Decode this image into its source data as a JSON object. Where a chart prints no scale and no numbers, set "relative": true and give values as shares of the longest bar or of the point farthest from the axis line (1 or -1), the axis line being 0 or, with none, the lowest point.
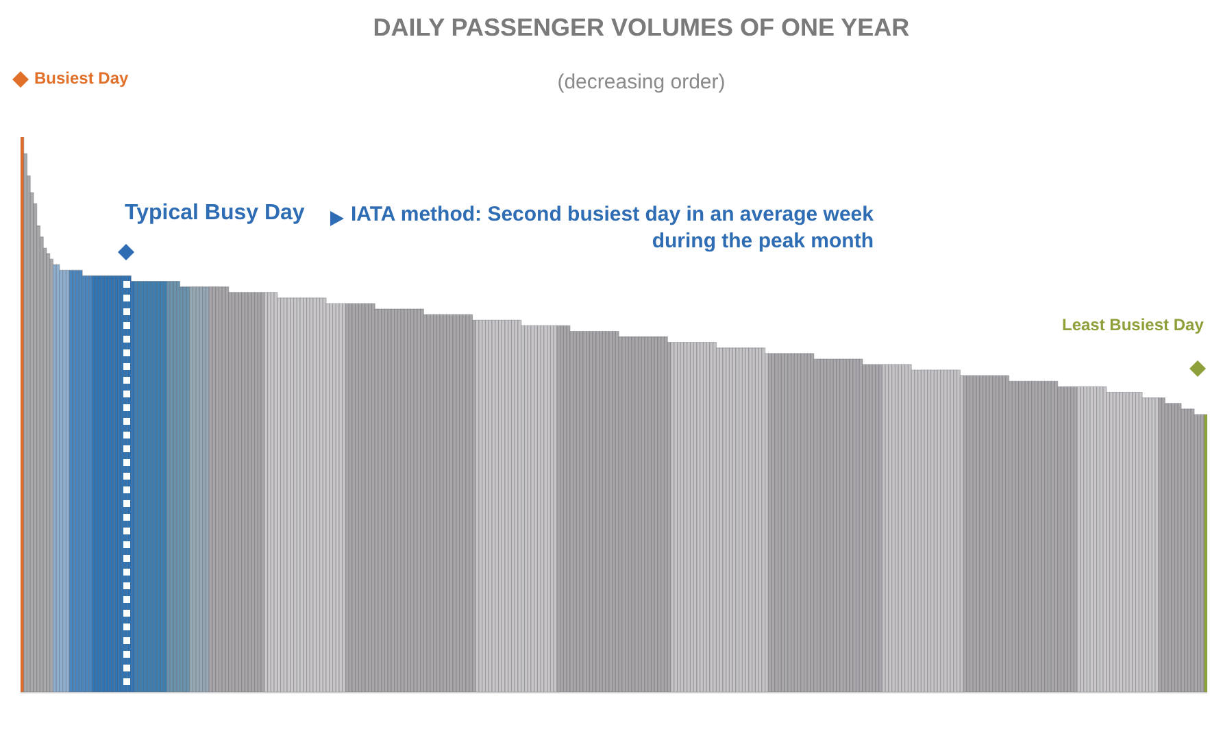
{
  "chart_data": {
    "type": "bar",
    "title": "DAILY PASSENGER VOLUMES OF ONE YEAR",
    "subtitle": "(decreasing order)",
    "relative": true,
    "tick_labels": false,
    "categories": [
      null,
      null,
      null,
      null,
      null,
      null,
      null,
      null,
      null,
      null,
      null,
      null,
      null,
      null,
      null,
      null,
      null,
      null,
      null,
      null,
      null,
      null,
      null,
      null,
      null,
      null,
      null,
      null,
      null,
      null,
      null,
      null,
      null,
      null,
      null,
      null,
      null,
      null,
      null,
      null,
      null,
      null,
      null,
      null,
      null,
      null,
      null,
      null,
      null,
      null,
      null,
      null,
      null,
      null,
      null,
      null,
      null,
      null,
      null,
      null,
      null,
      null,
      null,
      null,
      null,
      null,
      null,
      null,
      null,
      null,
      null,
      null,
      null,
      null,
      null,
      null,
      null,
      null,
      null,
      null,
      null,
      null,
      null,
      null,
      null,
      null,
      null,
      null,
      null,
      null,
      null,
      null,
      null,
      null,
      null,
      null,
      null,
      null,
      null,
      null,
      null,
      null,
      null,
      null,
      null,
      null,
      null,
      null,
      null,
      null,
      null,
      null,
      null,
      null,
      null,
      null,
      null,
      null,
      null,
      null,
      null,
      null,
      null,
      null,
      null,
      null,
      null,
      null,
      null,
      null,
      null,
      null,
      null,
      null,
      null,
      null,
      null,
      null,
      null,
      null,
      null,
      null,
      null,
      null,
      null,
      null,
      null,
      null,
      null,
      null,
      null,
      null,
      null,
      null,
      null,
      null,
      null,
      null,
      null,
      null,
      null,
      null,
      null,
      null,
      null,
      null,
      null,
      null,
      null,
      null,
      null,
      null,
      null,
      null,
      null,
      null,
      null,
      null,
      null,
      null,
      null,
      null,
      null,
      null,
      null,
      null,
      null,
      null,
      null,
      null,
      null,
      null,
      null,
      null,
      null,
      null,
      null,
      null,
      null,
      null,
      null,
      null,
      null,
      null,
      null,
      null,
      null,
      null,
      null,
      null,
      null,
      null,
      null,
      null,
      null,
      null,
      null,
      null,
      null,
      null,
      null,
      null,
      null,
      null,
      null,
      null,
      null,
      null,
      null,
      null,
      null,
      null,
      null,
      null,
      null,
      null,
      null,
      null,
      null,
      null,
      null,
      null,
      null,
      null,
      null,
      null,
      null,
      null,
      null,
      null,
      null,
      null,
      null,
      null,
      null,
      null,
      null,
      null,
      null,
      null,
      null,
      null,
      null,
      null,
      null,
      null,
      null,
      null,
      null,
      null,
      null,
      null,
      null,
      null,
      null,
      null,
      null,
      null,
      null,
      null,
      null,
      null,
      null,
      null,
      null,
      null,
      null,
      null,
      null,
      null,
      null,
      null,
      null,
      null,
      null,
      null,
      null,
      null,
      null,
      null,
      null,
      null,
      null,
      null,
      null,
      null,
      null,
      null,
      null,
      null,
      null,
      null,
      null,
      null,
      null,
      null,
      null,
      null,
      null,
      null,
      null,
      null,
      null,
      null,
      null,
      null,
      null,
      null,
      null,
      null,
      null,
      null,
      null,
      null,
      null,
      null,
      null,
      null,
      null,
      null,
      null,
      null,
      null,
      null,
      null,
      null,
      null,
      null,
      null,
      null,
      null,
      null,
      null,
      null,
      null,
      null,
      null,
      null,
      null,
      null,
      null,
      null,
      null,
      null,
      null
    ],
    "values": [
      1,
      0.97,
      0.93,
      0.9,
      0.88,
      0.84,
      0.82,
      0.8,
      0.79,
      0.78,
      0.77,
      0.77,
      0.76,
      0.76,
      0.76,
      0.76,
      0.76,
      0.76,
      0.76,
      0.75,
      0.75,
      0.75,
      0.75,
      0.75,
      0.75,
      0.75,
      0.75,
      0.75,
      0.75,
      0.75,
      0.75,
      0.75,
      0.75,
      0.75,
      0.74,
      0.74,
      0.74,
      0.74,
      0.74,
      0.74,
      0.74,
      0.74,
      0.74,
      0.74,
      0.74,
      0.74,
      0.74,
      0.74,
      0.74,
      0.73,
      0.73,
      0.73,
      0.73,
      0.73,
      0.73,
      0.73,
      0.73,
      0.73,
      0.73,
      0.73,
      0.73,
      0.73,
      0.73,
      0.73,
      0.72,
      0.72,
      0.72,
      0.72,
      0.72,
      0.72,
      0.72,
      0.72,
      0.72,
      0.72,
      0.72,
      0.72,
      0.72,
      0.72,
      0.72,
      0.71,
      0.71,
      0.71,
      0.71,
      0.71,
      0.71,
      0.71,
      0.71,
      0.71,
      0.71,
      0.71,
      0.71,
      0.71,
      0.71,
      0.71,
      0.7,
      0.7,
      0.7,
      0.7,
      0.7,
      0.7,
      0.7,
      0.7,
      0.7,
      0.7,
      0.7,
      0.7,
      0.7,
      0.7,
      0.7,
      0.69,
      0.69,
      0.69,
      0.69,
      0.69,
      0.69,
      0.69,
      0.69,
      0.69,
      0.69,
      0.69,
      0.69,
      0.69,
      0.69,
      0.69,
      0.68,
      0.68,
      0.68,
      0.68,
      0.68,
      0.68,
      0.68,
      0.68,
      0.68,
      0.68,
      0.68,
      0.68,
      0.68,
      0.68,
      0.68,
      0.67,
      0.67,
      0.67,
      0.67,
      0.67,
      0.67,
      0.67,
      0.67,
      0.67,
      0.67,
      0.67,
      0.67,
      0.67,
      0.67,
      0.67,
      0.66,
      0.66,
      0.66,
      0.66,
      0.66,
      0.66,
      0.66,
      0.66,
      0.66,
      0.66,
      0.66,
      0.66,
      0.66,
      0.66,
      0.66,
      0.65,
      0.65,
      0.65,
      0.65,
      0.65,
      0.65,
      0.65,
      0.65,
      0.65,
      0.65,
      0.65,
      0.65,
      0.65,
      0.65,
      0.65,
      0.64,
      0.64,
      0.64,
      0.64,
      0.64,
      0.64,
      0.64,
      0.64,
      0.64,
      0.64,
      0.64,
      0.64,
      0.64,
      0.64,
      0.64,
      0.63,
      0.63,
      0.63,
      0.63,
      0.63,
      0.63,
      0.63,
      0.63,
      0.63,
      0.63,
      0.63,
      0.63,
      0.63,
      0.63,
      0.63,
      0.62,
      0.62,
      0.62,
      0.62,
      0.62,
      0.62,
      0.62,
      0.62,
      0.62,
      0.62,
      0.62,
      0.62,
      0.62,
      0.62,
      0.62,
      0.61,
      0.61,
      0.61,
      0.61,
      0.61,
      0.61,
      0.61,
      0.61,
      0.61,
      0.61,
      0.61,
      0.61,
      0.61,
      0.61,
      0.61,
      0.6,
      0.6,
      0.6,
      0.6,
      0.6,
      0.6,
      0.6,
      0.6,
      0.6,
      0.6,
      0.6,
      0.6,
      0.6,
      0.6,
      0.6,
      0.59,
      0.59,
      0.59,
      0.59,
      0.59,
      0.59,
      0.59,
      0.59,
      0.59,
      0.59,
      0.59,
      0.59,
      0.59,
      0.59,
      0.59,
      0.58,
      0.58,
      0.58,
      0.58,
      0.58,
      0.58,
      0.58,
      0.58,
      0.58,
      0.58,
      0.58,
      0.58,
      0.58,
      0.58,
      0.58,
      0.57,
      0.57,
      0.57,
      0.57,
      0.57,
      0.57,
      0.57,
      0.57,
      0.57,
      0.57,
      0.57,
      0.57,
      0.57,
      0.57,
      0.57,
      0.56,
      0.56,
      0.56,
      0.56,
      0.56,
      0.56,
      0.56,
      0.56,
      0.56,
      0.56,
      0.56,
      0.56,
      0.56,
      0.56,
      0.56,
      0.55,
      0.55,
      0.55,
      0.55,
      0.55,
      0.55,
      0.55,
      0.55,
      0.55,
      0.55,
      0.55,
      0.55,
      0.55,
      0.55,
      0.55,
      0.54,
      0.54,
      0.54,
      0.54,
      0.54,
      0.54,
      0.54,
      0.54,
      0.54,
      0.54,
      0.54,
      0.53,
      0.53,
      0.53,
      0.53,
      0.53,
      0.53,
      0.53,
      0.52,
      0.52,
      0.52,
      0.52,
      0.52,
      0.51,
      0.51,
      0.51,
      0.51,
      0.5,
      0.5,
      0.5,
      0.5
    ],
    "colors": [
      "#e46c2a",
      "#a9a9ab",
      "#a9a9ab",
      "#a9a9ab",
      "#a9a9ab",
      "#a9a9ab",
      "#a9a9ab",
      "#a9a9ab",
      "#a9a9ab",
      "#a9a9ab",
      "#8fb0cf",
      "#8fb0cf",
      "#8fb0cf",
      "#8fb0cf",
      "#8fb0cf",
      "#4a86c0",
      "#4a86c0",
      "#4a86c0",
      "#4a86c0",
      "#4a86c0",
      "#4a86c0",
      "#4a86c0",
      "#2f74b5",
      "#2f74b5",
      "#2f74b5",
      "#2f74b5",
      "#2f74b5",
      "#2f74b5",
      "#2f74b5",
      "#2f74b5",
      "#2f74b5",
      "#2f74b5",
      "#2f74b5",
      "#2f74b5",
      "#2f74b5",
      "#3d7fb0",
      "#3d7fb0",
      "#3d7fb0",
      "#3d7fb0",
      "#3d7fb0",
      "#3d7fb0",
      "#3d7fb0",
      "#3d7fb0",
      "#3d7fb0",
      "#3d7fb0",
      "#6a93ad",
      "#6a93ad",
      "#6a93ad",
      "#6a93ad",
      "#6a93ad",
      "#6a93ad",
      "#6a93ad",
      "#96a9b4",
      "#96a9b4",
      "#96a9b4",
      "#96a9b4",
      "#96a9b4",
      "#96a9b4",
      "#a8a6a8",
      "#a8a6a8",
      "#a8a6a8",
      "#a8a6a8",
      "#a8a6a8",
      "#a8a6a8",
      "#a8a6a8",
      "#a8a6a8",
      "#a8a6a8",
      "#a8a6a8",
      "#a8a6a8",
      "#a8a6a8",
      "#a8a6a8",
      "#a8a6a8",
      "#a8a6a8",
      "#a8a6a8",
      "#a8a6a8",
      "#c9c7c9",
      "#c9c7c9",
      "#c9c7c9",
      "#c9c7c9",
      "#c9c7c9",
      "#c9c7c9",
      "#c9c7c9",
      "#c9c7c9",
      "#c9c7c9",
      "#c9c7c9",
      "#c9c7c9",
      "#c9c7c9",
      "#c9c7c9",
      "#c9c7c9",
      "#c9c7c9",
      "#c9c7c9",
      "#c9c7c9",
      "#c9c7c9",
      "#c9c7c9",
      "#c9c7c9",
      "#c9c7c9",
      "#c9c7c9",
      "#c9c7c9",
      "#c9c7c9",
      "#c9c7c9",
      "#a9a7a9",
      "#a9a7a9",
      "#a9a7a9",
      "#a9a7a9",
      "#a9a7a9",
      "#a9a7a9",
      "#a9a7a9",
      "#a9a7a9",
      "#a9a7a9",
      "#a9a7a9",
      "#a9a7a9",
      "#a9a7a9",
      "#a9a7a9",
      "#a9a7a9",
      "#a9a7a9",
      "#a9a7a9",
      "#a9a7a9",
      "#a9a7a9",
      "#a9a7a9",
      "#a9a7a9",
      "#a9a7a9",
      "#a9a7a9",
      "#a9a7a9",
      "#a9a7a9",
      "#a9a7a9",
      "#a9a7a9",
      "#a9a7a9",
      "#a9a7a9",
      "#a9a7a9",
      "#a9a7a9",
      "#a9a7a9",
      "#a9a7a9",
      "#a9a7a9",
      "#a9a7a9",
      "#a9a7a9",
      "#a9a7a9",
      "#a9a7a9",
      "#a9a7a9",
      "#a9a7a9",
      "#a9a7a9",
      "#c8c6c8",
      "#c8c6c8",
      "#c8c6c8",
      "#c8c6c8",
      "#c8c6c8",
      "#c8c6c8",
      "#c8c6c8",
      "#c8c6c8",
      "#c8c6c8",
      "#c8c6c8",
      "#c8c6c8",
      "#c8c6c8",
      "#c8c6c8",
      "#c8c6c8",
      "#c8c6c8",
      "#c8c6c8",
      "#c8c6c8",
      "#c8c6c8",
      "#c8c6c8",
      "#c8c6c8",
      "#c8c6c8",
      "#c8c6c8",
      "#c8c6c8",
      "#c8c6c8",
      "#c8c6c8",
      "#a8a6a8",
      "#a8a6a8",
      "#a8a6a8",
      "#a8a6a8",
      "#a8a6a8",
      "#a8a6a8",
      "#a8a6a8",
      "#a8a6a8",
      "#a8a6a8",
      "#a8a6a8",
      "#a8a6a8",
      "#a8a6a8",
      "#a8a6a8",
      "#a8a6a8",
      "#a8a6a8",
      "#a8a6a8",
      "#a8a6a8",
      "#a8a6a8",
      "#a8a6a8",
      "#a8a6a8",
      "#a8a6a8",
      "#a8a6a8",
      "#a8a6a8",
      "#a8a6a8",
      "#a8a6a8",
      "#a8a6a8",
      "#a8a6a8",
      "#a8a6a8",
      "#a8a6a8",
      "#a8a6a8",
      "#a8a6a8",
      "#a8a6a8",
      "#a8a6a8",
      "#a8a6a8",
      "#a8a6a8",
      "#c6c4c6",
      "#c6c4c6",
      "#c6c4c6",
      "#c6c4c6",
      "#c6c4c6",
      "#c6c4c6",
      "#c6c4c6",
      "#c6c4c6",
      "#c6c4c6",
      "#c6c4c6",
      "#c6c4c6",
      "#c6c4c6",
      "#c6c4c6",
      "#c6c4c6",
      "#c6c4c6",
      "#c6c4c6",
      "#c6c4c6",
      "#c6c4c6",
      "#c6c4c6",
      "#c6c4c6",
      "#c6c4c6",
      "#c6c4c6",
      "#c6c4c6",
      "#c6c4c6",
      "#c6c4c6",
      "#c6c4c6",
      "#c6c4c6",
      "#c6c4c6",
      "#c6c4c6",
      "#c6c4c6",
      "#aaa8aa",
      "#aaa8aa",
      "#aaa8aa",
      "#aaa8aa",
      "#aaa8aa",
      "#aaa8aa",
      "#aaa8aa",
      "#aaa8aa",
      "#aaa8aa",
      "#aaa8aa",
      "#aaa8aa",
      "#aaa8aa",
      "#aaa8aa",
      "#aaa8aa",
      "#aaa8aa",
      "#aaa8aa",
      "#aaa8aa",
      "#aaa8aa",
      "#aaa8aa",
      "#aaa8aa",
      "#aaa8aa",
      "#aaa8aa",
      "#aaa8aa",
      "#aaa8aa",
      "#aaa8aa",
      "#aaa8aa",
      "#aaa8aa",
      "#aaa8aa",
      "#aaa8aa",
      "#aaa8aa",
      "#aaa8aa",
      "#aaa8aa",
      "#aaa8aa",
      "#aaa8aa",
      "#aaa8aa",
      "#c6c4c6",
      "#c6c4c6",
      "#c6c4c6",
      "#c6c4c6",
      "#c6c4c6",
      "#c6c4c6",
      "#c6c4c6",
      "#c6c4c6",
      "#c6c4c6",
      "#c6c4c6",
      "#c6c4c6",
      "#c6c4c6",
      "#c6c4c6",
      "#c6c4c6",
      "#c6c4c6",
      "#c6c4c6",
      "#c6c4c6",
      "#c6c4c6",
      "#c6c4c6",
      "#c6c4c6",
      "#c6c4c6",
      "#c6c4c6",
      "#c6c4c6",
      "#c6c4c6",
      "#c6c4c6",
      "#a9a7a9",
      "#a9a7a9",
      "#a9a7a9",
      "#a9a7a9",
      "#a9a7a9",
      "#a9a7a9",
      "#a9a7a9",
      "#a9a7a9",
      "#a9a7a9",
      "#a9a7a9",
      "#a9a7a9",
      "#a9a7a9",
      "#a9a7a9",
      "#a9a7a9",
      "#a9a7a9",
      "#a9a7a9",
      "#a9a7a9",
      "#a9a7a9",
      "#a9a7a9",
      "#a9a7a9",
      "#a9a7a9",
      "#a9a7a9",
      "#a9a7a9",
      "#a9a7a9",
      "#a9a7a9",
      "#a9a7a9",
      "#a9a7a9",
      "#a9a7a9",
      "#a9a7a9",
      "#a9a7a9",
      "#a9a7a9",
      "#a9a7a9",
      "#a9a7a9",
      "#a9a7a9",
      "#a9a7a9",
      "#c9c7c9",
      "#c9c7c9",
      "#c9c7c9",
      "#c9c7c9",
      "#c9c7c9",
      "#c9c7c9",
      "#c9c7c9",
      "#c9c7c9",
      "#c9c7c9",
      "#c9c7c9",
      "#c9c7c9",
      "#c9c7c9",
      "#c9c7c9",
      "#c9c7c9",
      "#c9c7c9",
      "#c9c7c9",
      "#c9c7c9",
      "#c9c7c9",
      "#c9c7c9",
      "#c9c7c9",
      "#c9c7c9",
      "#c9c7c9",
      "#c9c7c9",
      "#c9c7c9",
      "#c9c7c9",
      "#a8a6a8",
      "#a8a6a8",
      "#a8a6a8",
      "#a8a6a8",
      "#a8a6a8",
      "#a8a6a8",
      "#a8a6a8",
      "#a8a6a8",
      "#a8a6a8",
      "#a8a6a8",
      "#a8a6a8",
      "#a8a6a8",
      "#a8a6a8",
      "#a8a6a8",
      "#8fa63a"
    ],
    "annotations": [
      "Busiest Day",
      "Typical Busy Day",
      "IATA method: Second busiest day in an average week\nduring the peak month",
      "Least Busiest Day"
    ]
  }
}
